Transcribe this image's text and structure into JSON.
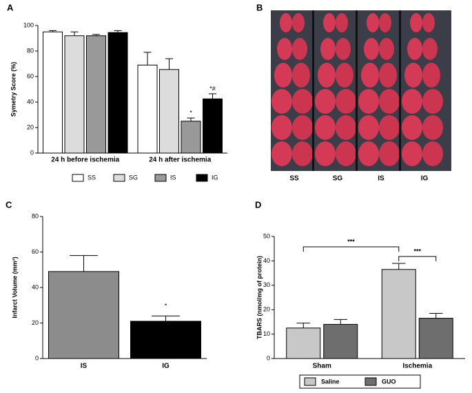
{
  "chart_data": [
    {
      "type": "bar",
      "panel": "A",
      "ylabel": "Symetry Score (%)",
      "categories": [
        "24 h before ischemia",
        "24 h after ischemia"
      ],
      "series": [
        {
          "name": "SS",
          "color": "#ffffff",
          "values": [
            95,
            69
          ],
          "errors": [
            1,
            10
          ]
        },
        {
          "name": "SG",
          "color": "#dcdcdc",
          "values": [
            92,
            65.5
          ],
          "errors": [
            3,
            8.5
          ]
        },
        {
          "name": "IS",
          "color": "#999999",
          "values": [
            92,
            25
          ],
          "errors": [
            1,
            2.5
          ],
          "annotations": [
            null,
            "*"
          ]
        },
        {
          "name": "IG",
          "color": "#000000",
          "values": [
            94.5,
            42.5
          ],
          "errors": [
            1.5,
            4
          ],
          "annotations": [
            null,
            "*#"
          ]
        }
      ],
      "ylim": [
        0,
        100
      ],
      "yticks": [
        0,
        20,
        40,
        60,
        80,
        100
      ],
      "legend": "bottom"
    },
    {
      "type": "bar",
      "panel": "C",
      "ylabel": "Infarct Volume (mm³)",
      "categories": [
        "IS",
        "IG"
      ],
      "values": [
        49,
        21
      ],
      "errors": [
        9,
        3
      ],
      "colors": [
        "#8c8c8c",
        "#000000"
      ],
      "annotations": [
        null,
        "*"
      ],
      "ylim": [
        0,
        80
      ],
      "yticks": [
        0,
        20,
        40,
        60,
        80
      ]
    },
    {
      "type": "bar",
      "panel": "D",
      "ylabel": "TBARS (nmol/mg of protein)",
      "categories": [
        "Sham",
        "Ischemia"
      ],
      "series": [
        {
          "name": "Saline",
          "color": "#c8c8c8",
          "values": [
            12.5,
            36.5
          ],
          "errors": [
            2,
            2.5
          ]
        },
        {
          "name": "GUO",
          "color": "#6e6e6e",
          "values": [
            14,
            16.5
          ],
          "errors": [
            2,
            2
          ]
        }
      ],
      "significance": [
        "***",
        "***"
      ],
      "ylim": [
        0,
        50
      ],
      "yticks": [
        0,
        10,
        20,
        30,
        40,
        50
      ],
      "legend": "bottom"
    }
  ],
  "image_panel": {
    "panel": "B",
    "columns": [
      "SS",
      "SG",
      "IS",
      "IG"
    ]
  }
}
